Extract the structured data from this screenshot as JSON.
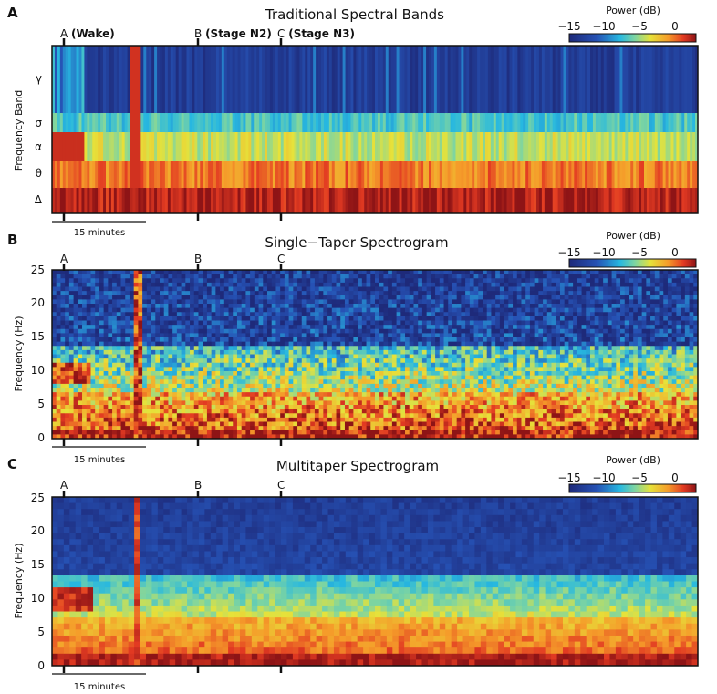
{
  "chart_data": [
    {
      "panel_letter": "A",
      "type": "heatmap",
      "title": "Traditional Spectral Bands",
      "ylabel": "Frequency Band",
      "y_categories": [
        "γ",
        "σ",
        "α",
        "θ",
        "Δ"
      ],
      "markers": [
        {
          "letter": "A",
          "label": "(Wake)"
        },
        {
          "letter": "B",
          "label": "(Stage N2)"
        },
        {
          "letter": "C",
          "label": "(Stage N3)"
        }
      ],
      "scale_bar": "15 minutes",
      "colorbar": {
        "label": "Power (dB)",
        "ticks": [
          "−15",
          "−10",
          "−5",
          "0"
        ],
        "range": [
          -15,
          3
        ]
      }
    },
    {
      "panel_letter": "B",
      "type": "heatmap",
      "title": "Single−Taper Spectrogram",
      "ylabel": "Frequency (Hz)",
      "yticks": [
        0,
        5,
        10,
        15,
        20,
        25
      ],
      "ylim": [
        0,
        25
      ],
      "markers": [
        {
          "letter": "A"
        },
        {
          "letter": "B"
        },
        {
          "letter": "C"
        }
      ],
      "scale_bar": "15 minutes",
      "colorbar": {
        "label": "Power (dB)",
        "ticks": [
          "−15",
          "−10",
          "−5",
          "0"
        ],
        "range": [
          -15,
          3
        ]
      }
    },
    {
      "panel_letter": "C",
      "type": "heatmap",
      "title": "Multitaper Spectrogram",
      "ylabel": "Frequency (Hz)",
      "yticks": [
        0,
        5,
        10,
        15,
        20,
        25
      ],
      "ylim": [
        0,
        25
      ],
      "markers": [
        {
          "letter": "A"
        },
        {
          "letter": "B"
        },
        {
          "letter": "C"
        }
      ],
      "scale_bar": "15 minutes",
      "colorbar": {
        "label": "Power (dB)",
        "ticks": [
          "−15",
          "−10",
          "−5",
          "0"
        ],
        "range": [
          -15,
          3
        ]
      }
    }
  ]
}
